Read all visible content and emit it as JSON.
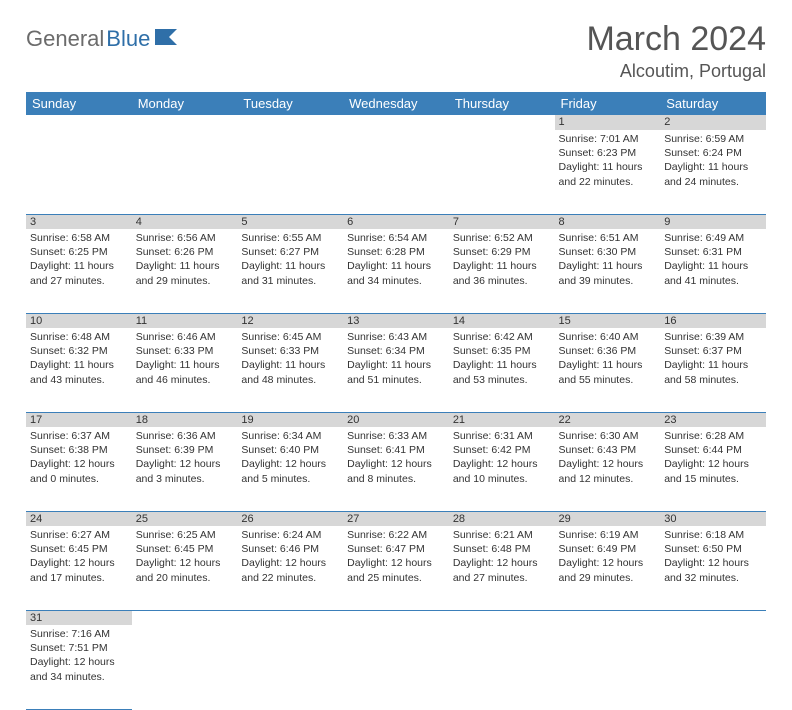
{
  "logo": {
    "part1": "General",
    "part2": "Blue"
  },
  "title": "March 2024",
  "location": "Alcoutim, Portugal",
  "colors": {
    "header_bg": "#3b7fb9",
    "header_fg": "#ffffff",
    "daynum_bg": "#d7d7d7",
    "border": "#3b7fb9",
    "logo_gray": "#6b6b6b",
    "logo_blue": "#2f6fa8"
  },
  "dayHeaders": [
    "Sunday",
    "Monday",
    "Tuesday",
    "Wednesday",
    "Thursday",
    "Friday",
    "Saturday"
  ],
  "weeks": [
    [
      null,
      null,
      null,
      null,
      null,
      {
        "n": "1",
        "sr": "7:01 AM",
        "ss": "6:23 PM",
        "dl": "11 hours and 22 minutes."
      },
      {
        "n": "2",
        "sr": "6:59 AM",
        "ss": "6:24 PM",
        "dl": "11 hours and 24 minutes."
      }
    ],
    [
      {
        "n": "3",
        "sr": "6:58 AM",
        "ss": "6:25 PM",
        "dl": "11 hours and 27 minutes."
      },
      {
        "n": "4",
        "sr": "6:56 AM",
        "ss": "6:26 PM",
        "dl": "11 hours and 29 minutes."
      },
      {
        "n": "5",
        "sr": "6:55 AM",
        "ss": "6:27 PM",
        "dl": "11 hours and 31 minutes."
      },
      {
        "n": "6",
        "sr": "6:54 AM",
        "ss": "6:28 PM",
        "dl": "11 hours and 34 minutes."
      },
      {
        "n": "7",
        "sr": "6:52 AM",
        "ss": "6:29 PM",
        "dl": "11 hours and 36 minutes."
      },
      {
        "n": "8",
        "sr": "6:51 AM",
        "ss": "6:30 PM",
        "dl": "11 hours and 39 minutes."
      },
      {
        "n": "9",
        "sr": "6:49 AM",
        "ss": "6:31 PM",
        "dl": "11 hours and 41 minutes."
      }
    ],
    [
      {
        "n": "10",
        "sr": "6:48 AM",
        "ss": "6:32 PM",
        "dl": "11 hours and 43 minutes."
      },
      {
        "n": "11",
        "sr": "6:46 AM",
        "ss": "6:33 PM",
        "dl": "11 hours and 46 minutes."
      },
      {
        "n": "12",
        "sr": "6:45 AM",
        "ss": "6:33 PM",
        "dl": "11 hours and 48 minutes."
      },
      {
        "n": "13",
        "sr": "6:43 AM",
        "ss": "6:34 PM",
        "dl": "11 hours and 51 minutes."
      },
      {
        "n": "14",
        "sr": "6:42 AM",
        "ss": "6:35 PM",
        "dl": "11 hours and 53 minutes."
      },
      {
        "n": "15",
        "sr": "6:40 AM",
        "ss": "6:36 PM",
        "dl": "11 hours and 55 minutes."
      },
      {
        "n": "16",
        "sr": "6:39 AM",
        "ss": "6:37 PM",
        "dl": "11 hours and 58 minutes."
      }
    ],
    [
      {
        "n": "17",
        "sr": "6:37 AM",
        "ss": "6:38 PM",
        "dl": "12 hours and 0 minutes."
      },
      {
        "n": "18",
        "sr": "6:36 AM",
        "ss": "6:39 PM",
        "dl": "12 hours and 3 minutes."
      },
      {
        "n": "19",
        "sr": "6:34 AM",
        "ss": "6:40 PM",
        "dl": "12 hours and 5 minutes."
      },
      {
        "n": "20",
        "sr": "6:33 AM",
        "ss": "6:41 PM",
        "dl": "12 hours and 8 minutes."
      },
      {
        "n": "21",
        "sr": "6:31 AM",
        "ss": "6:42 PM",
        "dl": "12 hours and 10 minutes."
      },
      {
        "n": "22",
        "sr": "6:30 AM",
        "ss": "6:43 PM",
        "dl": "12 hours and 12 minutes."
      },
      {
        "n": "23",
        "sr": "6:28 AM",
        "ss": "6:44 PM",
        "dl": "12 hours and 15 minutes."
      }
    ],
    [
      {
        "n": "24",
        "sr": "6:27 AM",
        "ss": "6:45 PM",
        "dl": "12 hours and 17 minutes."
      },
      {
        "n": "25",
        "sr": "6:25 AM",
        "ss": "6:45 PM",
        "dl": "12 hours and 20 minutes."
      },
      {
        "n": "26",
        "sr": "6:24 AM",
        "ss": "6:46 PM",
        "dl": "12 hours and 22 minutes."
      },
      {
        "n": "27",
        "sr": "6:22 AM",
        "ss": "6:47 PM",
        "dl": "12 hours and 25 minutes."
      },
      {
        "n": "28",
        "sr": "6:21 AM",
        "ss": "6:48 PM",
        "dl": "12 hours and 27 minutes."
      },
      {
        "n": "29",
        "sr": "6:19 AM",
        "ss": "6:49 PM",
        "dl": "12 hours and 29 minutes."
      },
      {
        "n": "30",
        "sr": "6:18 AM",
        "ss": "6:50 PM",
        "dl": "12 hours and 32 minutes."
      }
    ],
    [
      {
        "n": "31",
        "sr": "7:16 AM",
        "ss": "7:51 PM",
        "dl": "12 hours and 34 minutes."
      },
      null,
      null,
      null,
      null,
      null,
      null
    ]
  ],
  "labels": {
    "sunrise": "Sunrise:",
    "sunset": "Sunset:",
    "daylight": "Daylight:"
  }
}
